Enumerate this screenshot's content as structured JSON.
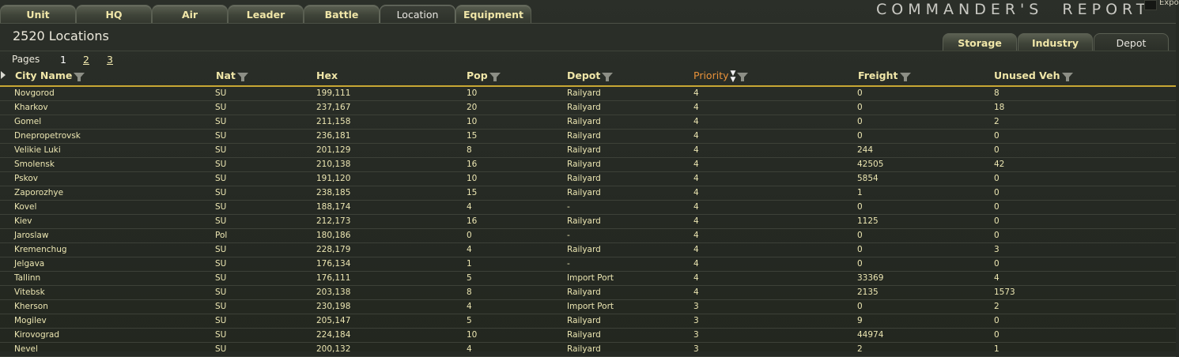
{
  "top_tabs": [
    {
      "label": "Unit",
      "active": false
    },
    {
      "label": "HQ",
      "active": false
    },
    {
      "label": "Air",
      "active": false
    },
    {
      "label": "Leader",
      "active": false
    },
    {
      "label": "Battle",
      "active": false
    },
    {
      "label": "Location",
      "active": true
    },
    {
      "label": "Equipment",
      "active": false
    }
  ],
  "brand": "COMMANDER'S  REPORT",
  "export_label": "Expo",
  "heading": "2520 Locations",
  "sub_tabs": [
    {
      "label": "Storage",
      "active": false
    },
    {
      "label": "Industry",
      "active": false
    },
    {
      "label": "Depot",
      "active": true
    }
  ],
  "pagination": {
    "label": "Pages",
    "pages": [
      "1",
      "2",
      "3"
    ],
    "current": "1"
  },
  "columns": [
    {
      "key": "city",
      "label": "City Name",
      "filter": true
    },
    {
      "key": "nat",
      "label": "Nat",
      "filter": true
    },
    {
      "key": "hex",
      "label": "Hex",
      "filter": false
    },
    {
      "key": "pop",
      "label": "Pop",
      "filter": true
    },
    {
      "key": "depot",
      "label": "Depot",
      "filter": true
    },
    {
      "key": "priority",
      "label": "Priority",
      "filter": true,
      "sorted": "descending"
    },
    {
      "key": "freight",
      "label": "Freight",
      "filter": true
    },
    {
      "key": "unused_veh",
      "label": "Unused Veh",
      "filter": true
    }
  ],
  "rows": [
    {
      "city": "Novgorod",
      "nat": "SU",
      "hex": "199,111",
      "pop": "10",
      "depot": "Railyard",
      "priority": "4",
      "freight": "0",
      "unused_veh": "8"
    },
    {
      "city": "Kharkov",
      "nat": "SU",
      "hex": "237,167",
      "pop": "20",
      "depot": "Railyard",
      "priority": "4",
      "freight": "0",
      "unused_veh": "18"
    },
    {
      "city": "Gomel",
      "nat": "SU",
      "hex": "211,158",
      "pop": "10",
      "depot": "Railyard",
      "priority": "4",
      "freight": "0",
      "unused_veh": "2"
    },
    {
      "city": "Dnepropetrovsk",
      "nat": "SU",
      "hex": "236,181",
      "pop": "15",
      "depot": "Railyard",
      "priority": "4",
      "freight": "0",
      "unused_veh": "0"
    },
    {
      "city": "Velikie Luki",
      "nat": "SU",
      "hex": "201,129",
      "pop": "8",
      "depot": "Railyard",
      "priority": "4",
      "freight": "244",
      "unused_veh": "0"
    },
    {
      "city": "Smolensk",
      "nat": "SU",
      "hex": "210,138",
      "pop": "16",
      "depot": "Railyard",
      "priority": "4",
      "freight": "42505",
      "unused_veh": "42"
    },
    {
      "city": "Pskov",
      "nat": "SU",
      "hex": "191,120",
      "pop": "10",
      "depot": "Railyard",
      "priority": "4",
      "freight": "5854",
      "unused_veh": "0"
    },
    {
      "city": "Zaporozhye",
      "nat": "SU",
      "hex": "238,185",
      "pop": "15",
      "depot": "Railyard",
      "priority": "4",
      "freight": "1",
      "unused_veh": "0"
    },
    {
      "city": "Kovel",
      "nat": "SU",
      "hex": "188,174",
      "pop": "4",
      "depot": "-",
      "priority": "4",
      "freight": "0",
      "unused_veh": "0"
    },
    {
      "city": "Kiev",
      "nat": "SU",
      "hex": "212,173",
      "pop": "16",
      "depot": "Railyard",
      "priority": "4",
      "freight": "1125",
      "unused_veh": "0"
    },
    {
      "city": "Jaroslaw",
      "nat": "Pol",
      "hex": "180,186",
      "pop": "0",
      "depot": "-",
      "priority": "4",
      "freight": "0",
      "unused_veh": "0"
    },
    {
      "city": "Kremenchug",
      "nat": "SU",
      "hex": "228,179",
      "pop": "4",
      "depot": "Railyard",
      "priority": "4",
      "freight": "0",
      "unused_veh": "3"
    },
    {
      "city": "Jelgava",
      "nat": "SU",
      "hex": "176,134",
      "pop": "1",
      "depot": "-",
      "priority": "4",
      "freight": "0",
      "unused_veh": "0"
    },
    {
      "city": "Tallinn",
      "nat": "SU",
      "hex": "176,111",
      "pop": "5",
      "depot": "Import Port",
      "priority": "4",
      "freight": "33369",
      "unused_veh": "4"
    },
    {
      "city": "Vitebsk",
      "nat": "SU",
      "hex": "203,138",
      "pop": "8",
      "depot": "Railyard",
      "priority": "4",
      "freight": "2135",
      "unused_veh": "1573"
    },
    {
      "city": "Kherson",
      "nat": "SU",
      "hex": "230,198",
      "pop": "4",
      "depot": "Import Port",
      "priority": "3",
      "freight": "0",
      "unused_veh": "2"
    },
    {
      "city": "Mogilev",
      "nat": "SU",
      "hex": "205,147",
      "pop": "5",
      "depot": "Railyard",
      "priority": "3",
      "freight": "9",
      "unused_veh": "0"
    },
    {
      "city": "Kirovograd",
      "nat": "SU",
      "hex": "224,184",
      "pop": "10",
      "depot": "Railyard",
      "priority": "3",
      "freight": "44974",
      "unused_veh": "0"
    },
    {
      "city": "Nevel",
      "nat": "SU",
      "hex": "200,132",
      "pop": "4",
      "depot": "Railyard",
      "priority": "3",
      "freight": "2",
      "unused_veh": "1"
    }
  ]
}
